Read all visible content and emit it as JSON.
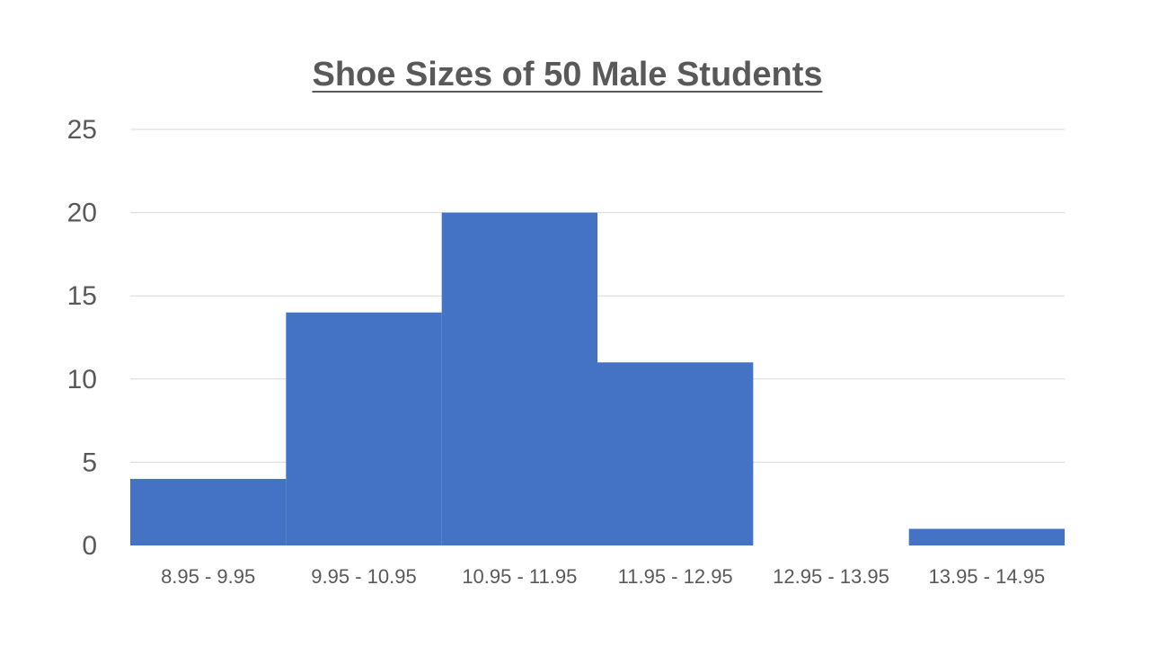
{
  "chart_data": {
    "type": "bar",
    "title": "Shoe Sizes of 50 Male Students",
    "xlabel": "",
    "ylabel": "",
    "categories": [
      "8.95 - 9.95",
      "9.95 - 10.95",
      "10.95 - 11.95",
      "11.95 - 12.95",
      "12.95 - 13.95",
      "13.95 - 14.95"
    ],
    "values": [
      4,
      14,
      20,
      11,
      0,
      1
    ],
    "ylim": [
      0,
      25
    ],
    "yticks": [
      0,
      5,
      10,
      15,
      20,
      25
    ],
    "grid": true,
    "bar_color": "#4472C4",
    "gridline_color": "#D9D9D9"
  }
}
